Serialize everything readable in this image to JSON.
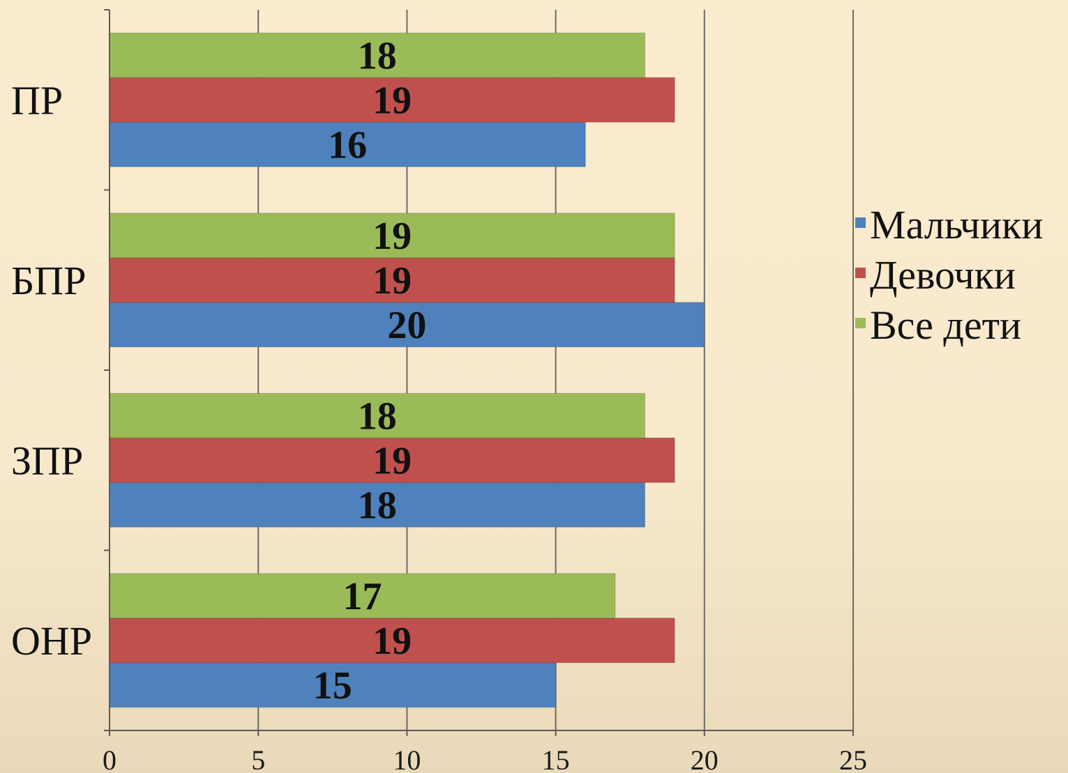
{
  "chart_data": {
    "type": "bar",
    "orientation": "horizontal",
    "categories": [
      "ОНР",
      "ЗПР",
      "БПР",
      "ПР"
    ],
    "series": [
      {
        "name": "Мальчики",
        "color": "#4f81bd",
        "values": [
          15,
          18,
          20,
          16
        ]
      },
      {
        "name": "Девочки",
        "color": "#c0504d",
        "values": [
          19,
          19,
          19,
          19
        ]
      },
      {
        "name": "Все дети",
        "color": "#9bbb59",
        "values": [
          17,
          18,
          19,
          18
        ]
      }
    ],
    "xlim": [
      0,
      25
    ],
    "xticks": [
      "0",
      "5",
      "10",
      "15",
      "20",
      "25"
    ],
    "grid": true,
    "legend_position": "right",
    "data_labels": true,
    "title": "",
    "xlabel": "",
    "ylabel": ""
  }
}
